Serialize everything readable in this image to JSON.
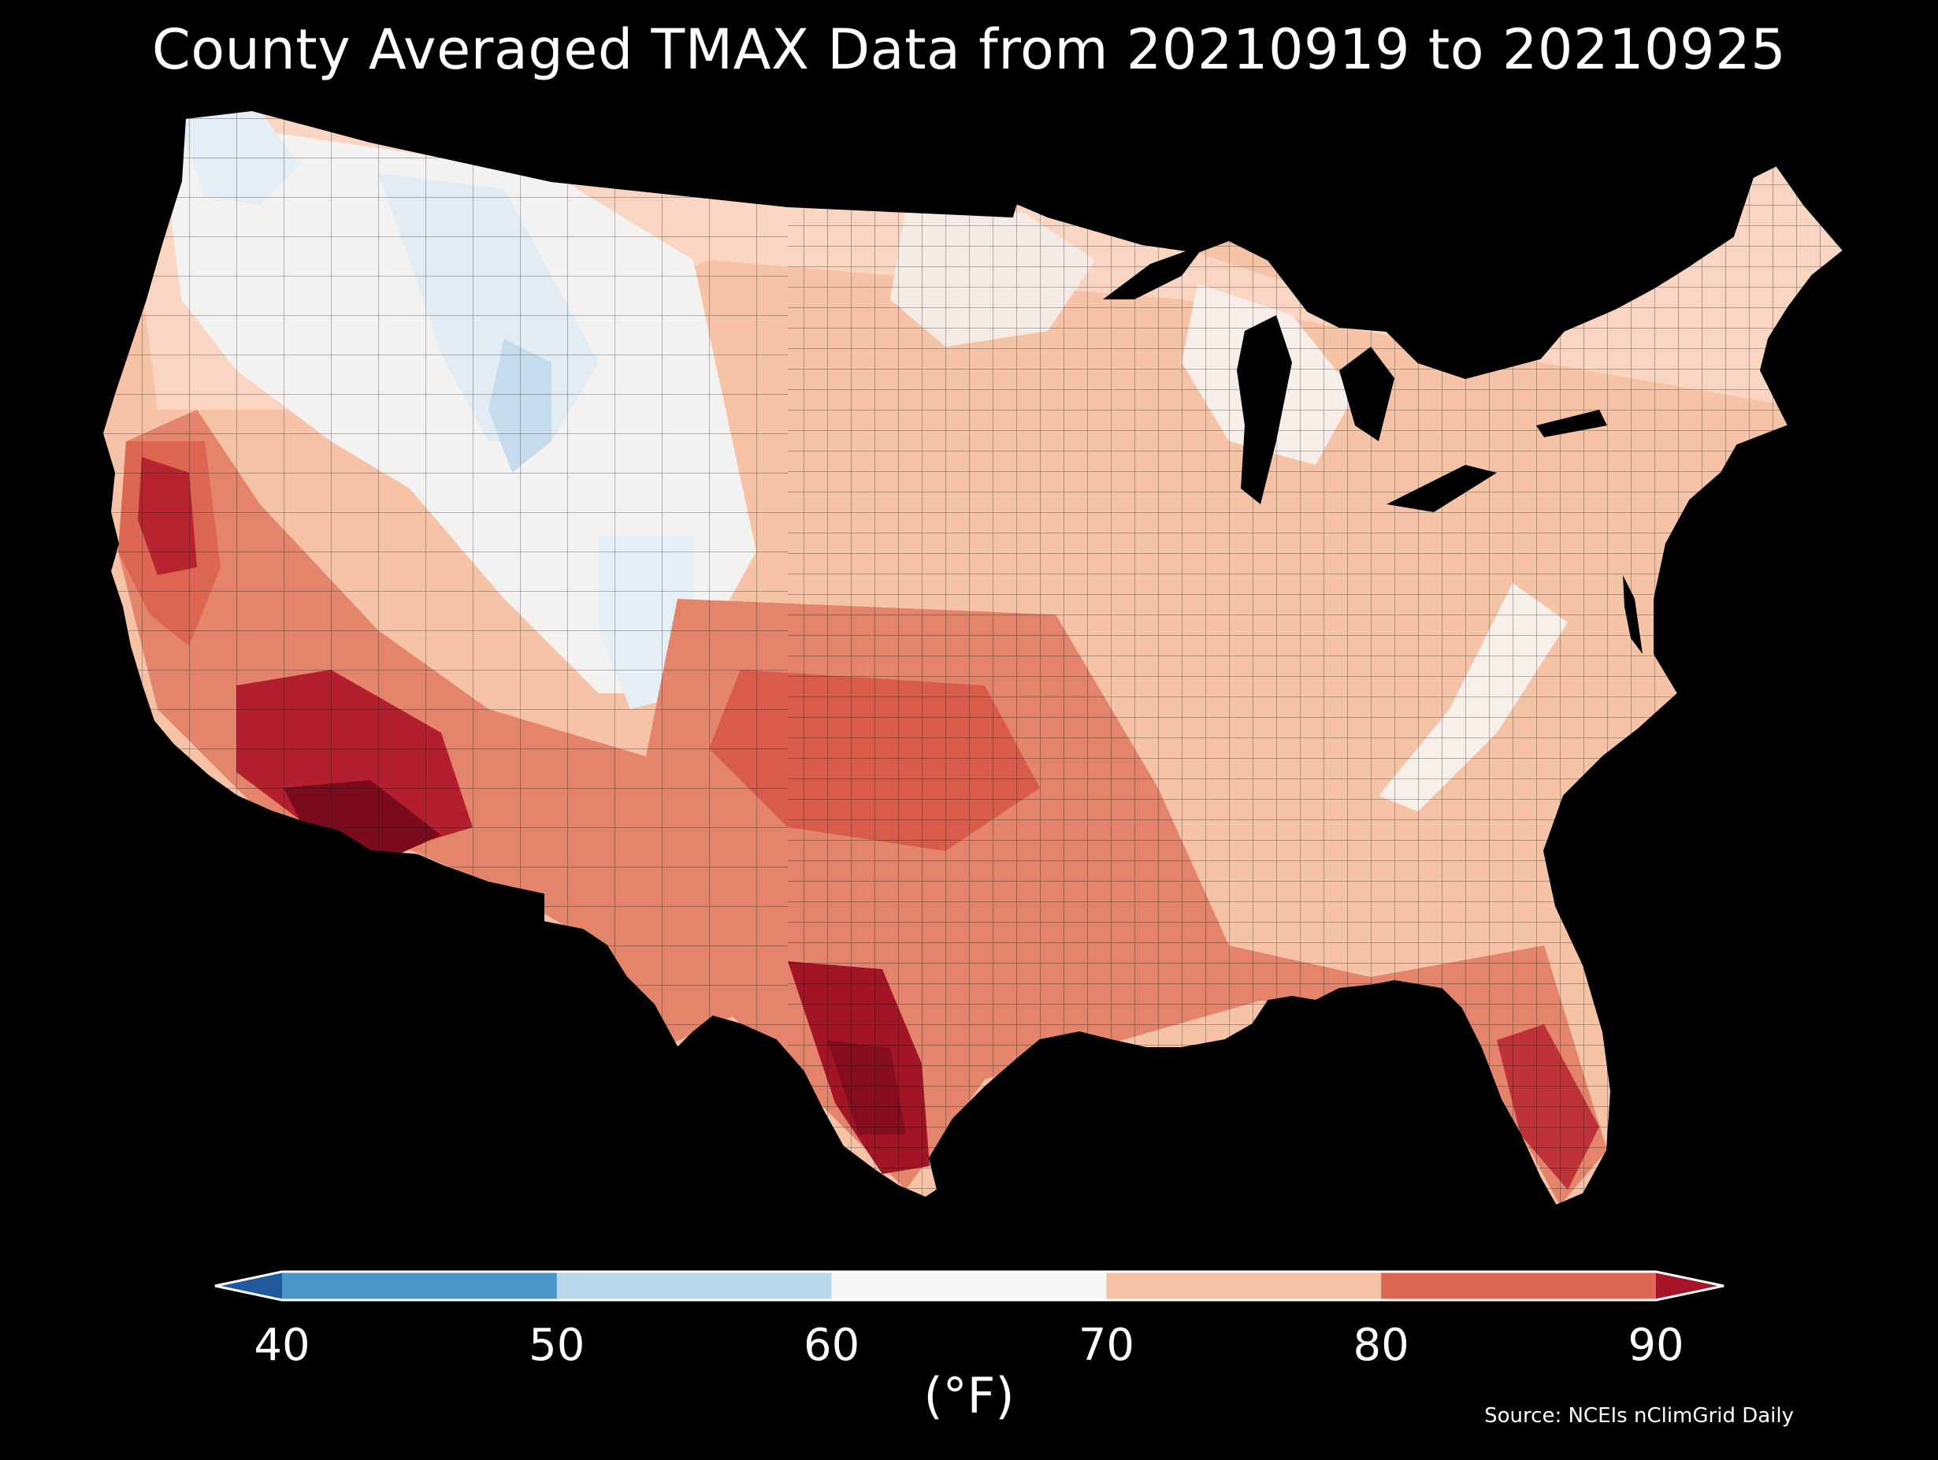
{
  "title": "County Averaged TMAX Data from 20210919 to 20210925",
  "map": {
    "region": "Contiguous United States",
    "units": "counties",
    "variable": "TMAX",
    "background_color": "#000000",
    "county_border_color": "#000000"
  },
  "colorbar": {
    "unit_label": "(°F)",
    "ticks": [
      "40",
      "50",
      "60",
      "70",
      "80",
      "90"
    ],
    "extend": "both",
    "bins": [
      {
        "range": "<40",
        "color": "#1f5a9e"
      },
      {
        "range": "40-50",
        "color": "#4a96c6"
      },
      {
        "range": "50-60",
        "color": "#b8d8ea"
      },
      {
        "range": "60-70",
        "color": "#f6f6f6"
      },
      {
        "range": "70-80",
        "color": "#f7c3a6"
      },
      {
        "range": "80-90",
        "color": "#dc6652"
      },
      {
        "range": ">90",
        "color": "#a51527"
      }
    ]
  },
  "source": "Source: NCEIs nClimGrid Daily"
}
